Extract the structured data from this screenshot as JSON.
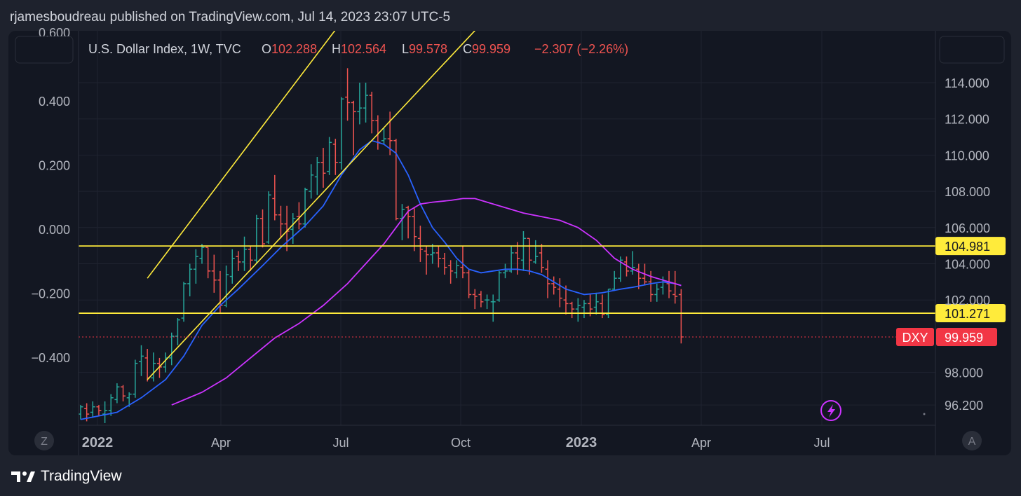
{
  "header": {
    "publish_line": "rjamesboudreau published on TradingView.com, Jul 14, 2023 23:07 UTC-5"
  },
  "legend": {
    "symbol": "U.S. Dollar Index, 1W, TVC",
    "open_label": "O",
    "open": "102.288",
    "high_label": "H",
    "high": "102.564",
    "low_label": "L",
    "low": "99.578",
    "close_label": "C",
    "close": "99.959",
    "change": "−2.307 (−2.26%)"
  },
  "footer": {
    "brand": "TradingView"
  },
  "buttons": {
    "left_scale": "Z",
    "auto_scale": "A"
  },
  "colors": {
    "up": "#26a69a",
    "down": "#ef5350",
    "fast_ma": "#2962ff",
    "slow_ma": "#cc33ff",
    "trend": "#ffeb3b",
    "price_tag": "#f23645",
    "level_tag": "#ffeb3b"
  },
  "chart_data": {
    "type": "candlestick",
    "title": "U.S. Dollar Index, 1W, TVC",
    "x_ticks": [
      "2022",
      "Apr",
      "Jul",
      "Oct",
      "2023",
      "Apr",
      "Jul"
    ],
    "right_axis": {
      "ticks": [
        "114.000",
        "112.000",
        "110.000",
        "108.000",
        "106.000",
        "104.000",
        "102.000",
        "98.000",
        "96.200"
      ],
      "ylim": [
        96.2,
        115.5
      ]
    },
    "left_axis": {
      "ticks": [
        "0.400",
        "0.200",
        "0.000",
        "−0.200",
        "−0.400"
      ],
      "partial_top_tick": "0.600",
      "ylim": [
        -0.6,
        0.6
      ]
    },
    "horizontal_levels": [
      {
        "value": "104.981"
      },
      {
        "value": "101.271"
      }
    ],
    "last_price": {
      "symbol": "DXY",
      "value": "99.959"
    },
    "icons": [
      "lightning-icon"
    ],
    "grid": true,
    "series": [
      {
        "kind": "ohlc",
        "candles": [
          [
            95.7,
            96.2,
            95.4,
            96.1
          ],
          [
            96.0,
            96.3,
            95.3,
            95.7
          ],
          [
            95.8,
            96.4,
            95.5,
            96.1
          ],
          [
            96.1,
            96.2,
            95.6,
            95.9
          ],
          [
            95.7,
            96.4,
            95.2,
            95.9
          ],
          [
            95.9,
            96.8,
            95.6,
            96.6
          ],
          [
            96.5,
            97.4,
            96.3,
            97.2
          ],
          [
            97.2,
            97.3,
            96.4,
            96.7
          ],
          [
            96.6,
            96.9,
            96.1,
            96.8
          ],
          [
            96.8,
            98.7,
            96.6,
            98.5
          ],
          [
            98.6,
            99.5,
            97.8,
            98.9
          ],
          [
            98.8,
            99.3,
            97.5,
            97.7
          ],
          [
            97.7,
            99.1,
            97.5,
            98.5
          ],
          [
            98.5,
            98.8,
            97.7,
            98.3
          ],
          [
            98.3,
            99.1,
            98.0,
            98.8
          ],
          [
            98.8,
            100.2,
            98.4,
            100.0
          ],
          [
            100.0,
            101.0,
            99.5,
            100.9
          ],
          [
            101.0,
            103.0,
            100.8,
            102.9
          ],
          [
            102.9,
            104.0,
            102.2,
            103.7
          ],
          [
            103.7,
            104.8,
            102.9,
            104.4
          ],
          [
            104.3,
            105.1,
            104.0,
            104.9
          ],
          [
            104.9,
            104.9,
            103.2,
            103.6
          ],
          [
            103.6,
            104.5,
            102.4,
            103.1
          ],
          [
            103.1,
            103.6,
            101.3,
            101.7
          ],
          [
            101.7,
            103.9,
            101.6,
            103.4
          ],
          [
            103.3,
            104.8,
            102.9,
            104.3
          ],
          [
            104.4,
            104.7,
            103.6,
            104.1
          ],
          [
            104.1,
            105.5,
            103.6,
            104.8
          ],
          [
            104.8,
            105.0,
            103.6,
            104.2
          ],
          [
            104.2,
            106.7,
            104.0,
            106.5
          ],
          [
            106.5,
            107.0,
            104.9,
            105.1
          ],
          [
            105.2,
            108.0,
            105.1,
            107.8
          ],
          [
            107.6,
            108.9,
            106.4,
            106.7
          ],
          [
            106.7,
            107.2,
            105.4,
            106.2
          ],
          [
            106.2,
            107.2,
            104.7,
            105.8
          ],
          [
            105.9,
            106.8,
            105.1,
            106.5
          ],
          [
            106.6,
            107.4,
            105.9,
            106.2
          ],
          [
            106.2,
            108.2,
            106.0,
            108.1
          ],
          [
            108.0,
            109.5,
            107.6,
            108.9
          ],
          [
            108.8,
            109.9,
            107.8,
            109.6
          ],
          [
            109.6,
            110.4,
            108.2,
            109.0
          ],
          [
            109.1,
            111.0,
            108.9,
            110.7
          ],
          [
            110.6,
            110.9,
            108.9,
            109.6
          ],
          [
            109.6,
            113.2,
            109.2,
            113.1
          ],
          [
            113.2,
            114.8,
            111.9,
            112.9
          ],
          [
            112.9,
            113.0,
            110.0,
            112.4
          ],
          [
            112.4,
            114.0,
            111.7,
            112.6
          ],
          [
            112.6,
            114.0,
            111.8,
            113.3
          ],
          [
            113.3,
            113.5,
            111.2,
            111.9
          ],
          [
            111.9,
            112.2,
            110.3,
            110.7
          ],
          [
            110.8,
            111.5,
            110.6,
            110.9
          ],
          [
            110.9,
            112.4,
            110.0,
            110.8
          ],
          [
            110.8,
            110.9,
            106.4,
            106.5
          ],
          [
            106.5,
            107.3,
            105.3,
            107.0
          ],
          [
            107.1,
            107.2,
            105.4,
            106.6
          ],
          [
            106.6,
            107.1,
            104.7,
            105.5
          ],
          [
            105.4,
            106.1,
            104.1,
            104.8
          ],
          [
            104.7,
            105.0,
            103.4,
            104.5
          ],
          [
            104.5,
            105.1,
            104.0,
            104.6
          ],
          [
            104.6,
            105.0,
            103.8,
            104.3
          ],
          [
            104.3,
            104.6,
            103.4,
            103.8
          ],
          [
            103.9,
            104.2,
            102.9,
            103.6
          ],
          [
            103.5,
            104.2,
            103.2,
            103.9
          ],
          [
            103.8,
            105.0,
            103.2,
            103.5
          ],
          [
            103.5,
            103.7,
            102.1,
            102.3
          ],
          [
            102.3,
            102.6,
            101.5,
            102.2
          ],
          [
            102.3,
            102.5,
            101.6,
            101.9
          ],
          [
            102.0,
            102.3,
            101.5,
            102.0
          ],
          [
            101.9,
            102.3,
            100.8,
            101.9
          ],
          [
            102.0,
            103.6,
            101.9,
            103.5
          ],
          [
            103.5,
            104.0,
            103.2,
            103.6
          ],
          [
            103.6,
            105.0,
            103.5,
            104.6
          ],
          [
            104.6,
            105.2,
            103.4,
            104.3
          ],
          [
            104.2,
            105.8,
            103.6,
            105.4
          ],
          [
            105.4,
            105.4,
            103.4,
            104.2
          ],
          [
            104.1,
            105.3,
            104.0,
            104.4
          ],
          [
            104.6,
            105.1,
            103.5,
            103.8
          ],
          [
            103.7,
            104.2,
            102.1,
            102.9
          ],
          [
            102.9,
            103.3,
            102.3,
            102.7
          ],
          [
            102.6,
            103.2,
            101.6,
            102.1
          ],
          [
            102.0,
            102.8,
            101.2,
            101.8
          ],
          [
            101.8,
            101.9,
            101.0,
            101.5
          ],
          [
            101.5,
            102.1,
            100.8,
            101.7
          ],
          [
            101.6,
            102.0,
            101.0,
            101.8
          ],
          [
            101.8,
            102.3,
            101.1,
            101.5
          ],
          [
            101.6,
            102.4,
            101.2,
            101.9
          ],
          [
            101.8,
            102.3,
            101.0,
            101.2
          ],
          [
            101.2,
            102.6,
            101.0,
            102.6
          ],
          [
            102.6,
            103.6,
            102.5,
            103.2
          ],
          [
            103.2,
            104.4,
            103.0,
            104.2
          ],
          [
            104.1,
            104.4,
            103.3,
            103.6
          ],
          [
            103.6,
            104.7,
            103.4,
            103.8
          ],
          [
            103.7,
            104.0,
            102.6,
            103.2
          ],
          [
            103.2,
            104.0,
            102.8,
            103.0
          ],
          [
            103.0,
            103.6,
            101.9,
            102.3
          ],
          [
            102.3,
            102.9,
            101.9,
            102.6
          ],
          [
            102.7,
            103.3,
            102.3,
            103.0
          ],
          [
            102.9,
            103.6,
            102.1,
            102.5
          ],
          [
            102.3,
            103.6,
            101.8,
            102.2
          ],
          [
            102.3,
            102.6,
            99.6,
            99.959
          ]
        ]
      },
      {
        "kind": "moving_average",
        "color": "#2962ff",
        "points": [
          [
            0,
            95.4
          ],
          [
            6,
            95.8
          ],
          [
            10,
            96.6
          ],
          [
            14,
            97.6
          ],
          [
            17,
            98.9
          ],
          [
            20,
            100.6
          ],
          [
            23,
            101.7
          ],
          [
            26,
            102.6
          ],
          [
            30,
            103.9
          ],
          [
            33,
            104.9
          ],
          [
            37,
            106.1
          ],
          [
            40,
            107.2
          ],
          [
            43,
            108.9
          ],
          [
            46,
            110.3
          ],
          [
            48,
            110.8
          ],
          [
            50,
            110.6
          ],
          [
            52,
            110.1
          ],
          [
            54,
            108.9
          ],
          [
            56,
            107.3
          ],
          [
            58,
            106.0
          ],
          [
            60,
            105.2
          ],
          [
            62,
            104.3
          ],
          [
            64,
            103.7
          ],
          [
            66,
            103.5
          ],
          [
            68,
            103.6
          ],
          [
            70,
            103.7
          ],
          [
            72,
            103.7
          ],
          [
            74,
            103.6
          ],
          [
            76,
            103.4
          ],
          [
            78,
            103.0
          ],
          [
            80,
            102.6
          ],
          [
            83,
            102.3
          ],
          [
            86,
            102.4
          ],
          [
            89,
            102.6
          ],
          [
            91,
            102.7
          ],
          [
            94,
            102.9
          ],
          [
            96,
            103.0
          ],
          [
            98,
            102.9
          ],
          [
            99,
            102.8
          ]
        ]
      },
      {
        "kind": "moving_average",
        "color": "#cc33ff",
        "points": [
          [
            15,
            96.2
          ],
          [
            20,
            96.9
          ],
          [
            24,
            97.7
          ],
          [
            28,
            98.8
          ],
          [
            32,
            99.9
          ],
          [
            36,
            100.7
          ],
          [
            40,
            101.7
          ],
          [
            44,
            102.9
          ],
          [
            47,
            104.0
          ],
          [
            50,
            105.1
          ],
          [
            52,
            106.0
          ],
          [
            54,
            106.9
          ],
          [
            56,
            107.3
          ],
          [
            58,
            107.4
          ],
          [
            61,
            107.5
          ],
          [
            63,
            107.6
          ],
          [
            65,
            107.6
          ],
          [
            67,
            107.4
          ],
          [
            70,
            107.1
          ],
          [
            73,
            106.8
          ],
          [
            76,
            106.6
          ],
          [
            79,
            106.4
          ],
          [
            82,
            106.0
          ],
          [
            85,
            105.3
          ],
          [
            88,
            104.3
          ],
          [
            91,
            103.7
          ],
          [
            94,
            103.3
          ],
          [
            96,
            103.1
          ],
          [
            98,
            102.9
          ],
          [
            99,
            102.8
          ]
        ]
      }
    ],
    "trend_lines": [
      {
        "p1": [
          11,
          103.2
        ],
        "p2": [
          70,
          129.3
        ]
      },
      {
        "p1": [
          11,
          97.6
        ],
        "p2": [
          76,
          120.8
        ]
      }
    ]
  }
}
